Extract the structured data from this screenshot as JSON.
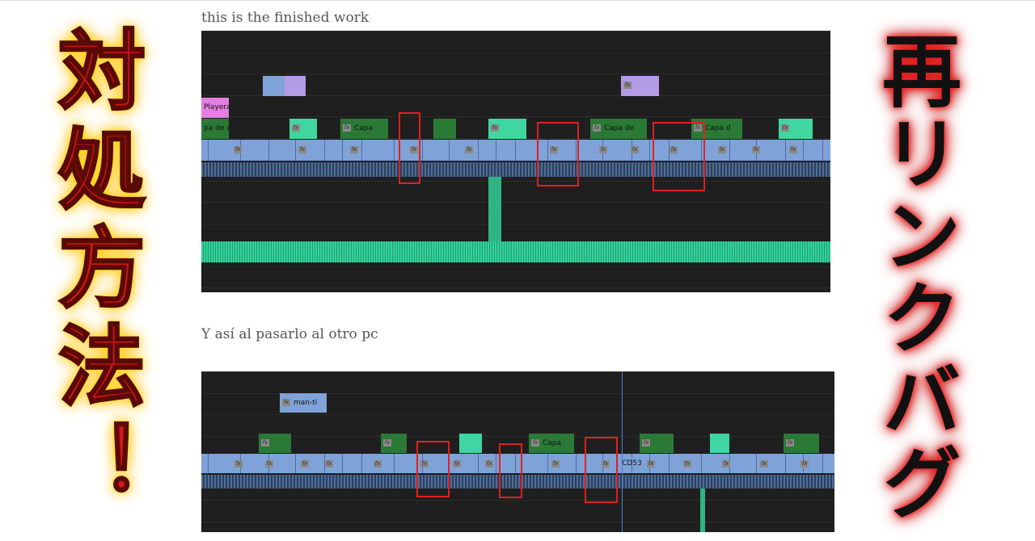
{
  "left_heading": "対処方法！",
  "right_heading": "再リンクバグ",
  "timelines": [
    {
      "caption": "this is the finished work",
      "clip_labels": [
        "pa de aj",
        "Playera",
        "Capa",
        "Capa de",
        "Capa d"
      ]
    },
    {
      "caption": "Y así al pasarlo al otro pc",
      "clip_labels": [
        "man-ti",
        "Capa",
        "CD53"
      ]
    }
  ],
  "fx_icon": "fx"
}
